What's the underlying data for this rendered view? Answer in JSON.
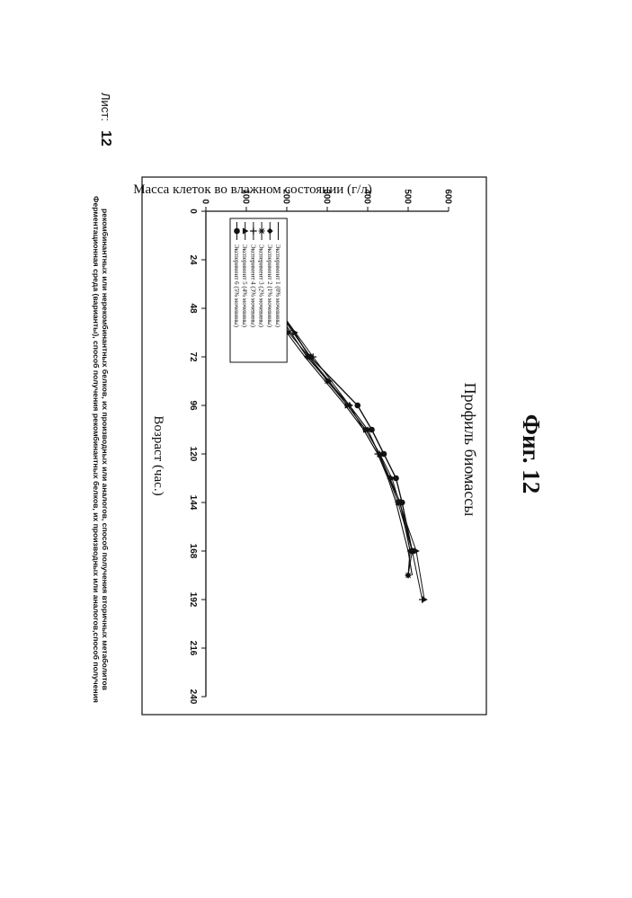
{
  "header": {
    "line1": "Ферментационная среда (варианты), способ получения рекомбинантных белков, их производных или аналогов,способ получения",
    "line2": "рекомбинантных или нерекомбинантных белков, их производных или аналогов, способ получения вторичных метаболитов",
    "sheet_label": "Лист:",
    "sheet_number": "12"
  },
  "figure_caption": "Фиг. 12",
  "chart_data": {
    "type": "line",
    "title": "Профиль биомассы",
    "xlabel": "Возраст (час.)",
    "ylabel": "Масса клеток во влажном состоянии (г/л)",
    "xlim": [
      0,
      240
    ],
    "ylim": [
      0,
      600
    ],
    "x_ticks": [
      "0",
      "24",
      "48",
      "72",
      "96",
      "120",
      "144",
      "168",
      "192",
      "216",
      "240"
    ],
    "y_ticks": [
      "0",
      "100",
      "200",
      "300",
      "400",
      "500",
      "600"
    ],
    "grid": false,
    "legend_position": "top-left",
    "series": [
      {
        "name": "Эксперимент 1 (0% мочевины)",
        "marker": "none",
        "points": [
          [
            24,
            125
          ],
          [
            36,
            140
          ],
          [
            48,
            168
          ],
          [
            60,
            200
          ],
          [
            72,
            245
          ],
          [
            84,
            295
          ],
          [
            96,
            345
          ],
          [
            108,
            390
          ],
          [
            120,
            425
          ],
          [
            132,
            450
          ],
          [
            144,
            470
          ],
          [
            156,
            485
          ],
          [
            168,
            500
          ],
          [
            180,
            510
          ]
        ]
      },
      {
        "name": "Эксперимент 2 (1% мочевины)",
        "marker": "diamond",
        "points": [
          [
            24,
            118
          ],
          [
            48,
            170
          ],
          [
            72,
            250
          ],
          [
            96,
            355
          ],
          [
            108,
            400
          ],
          [
            132,
            455
          ],
          [
            144,
            480
          ],
          [
            168,
            505
          ],
          [
            180,
            500
          ]
        ]
      },
      {
        "name": "Эксперимент 3 (2% мочевины)",
        "marker": "star",
        "points": [
          [
            24,
            122
          ],
          [
            36,
            145
          ],
          [
            48,
            170
          ],
          [
            60,
            205
          ],
          [
            72,
            255
          ],
          [
            84,
            300
          ],
          [
            96,
            350
          ],
          [
            108,
            395
          ],
          [
            120,
            430
          ],
          [
            144,
            475
          ],
          [
            168,
            510
          ],
          [
            180,
            500
          ]
        ]
      },
      {
        "name": "Эксперимент 4 (3% мочевины)",
        "marker": "plus",
        "points": [
          [
            24,
            128
          ],
          [
            48,
            178
          ],
          [
            72,
            265
          ],
          [
            96,
            355
          ],
          [
            120,
            425
          ],
          [
            144,
            480
          ],
          [
            168,
            510
          ],
          [
            192,
            535
          ]
        ]
      },
      {
        "name": "Эксперимент 5 (4% мочевины)",
        "marker": "triangle",
        "points": [
          [
            24,
            132
          ],
          [
            36,
            150
          ],
          [
            48,
            175
          ],
          [
            60,
            220
          ],
          [
            72,
            255
          ],
          [
            84,
            305
          ],
          [
            96,
            350
          ],
          [
            108,
            395
          ],
          [
            120,
            430
          ],
          [
            132,
            460
          ],
          [
            144,
            478
          ],
          [
            168,
            520
          ],
          [
            192,
            540
          ]
        ]
      },
      {
        "name": "Эксперимент 6 (5% мочевины)",
        "marker": "circle",
        "points": [
          [
            24,
            108
          ],
          [
            48,
            175
          ],
          [
            72,
            258
          ],
          [
            96,
            375
          ],
          [
            108,
            410
          ],
          [
            120,
            440
          ],
          [
            132,
            470
          ],
          [
            144,
            485
          ],
          [
            168,
            510
          ]
        ]
      }
    ]
  }
}
